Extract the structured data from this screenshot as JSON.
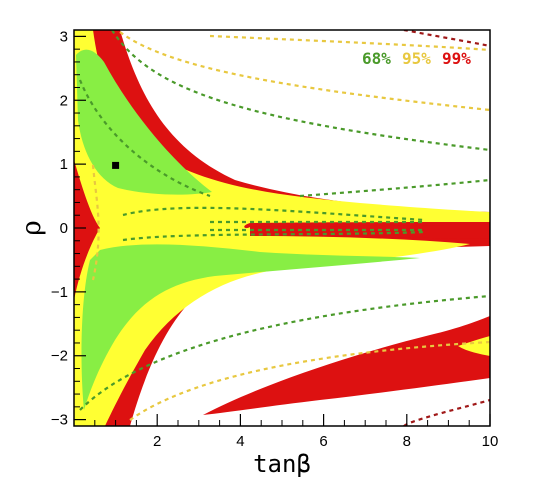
{
  "colors": {
    "c68": "#88ee44",
    "c95": "#ffff33",
    "c99": "#dd1111",
    "dash68": "#4a9a2a",
    "dash95": "#e8c840",
    "dash99": "#a01818",
    "best_fit": "#000000"
  },
  "legend": {
    "l68": "68%",
    "l95": "95%",
    "l99": "99%",
    "placement": "top-right"
  },
  "chart_data": {
    "type": "contour",
    "xlabel": "tanβ",
    "ylabel": "ρ",
    "xlim": [
      0,
      10
    ],
    "ylim": [
      -3.1,
      3.1
    ],
    "x_ticks": [
      2,
      4,
      6,
      8,
      10
    ],
    "x_tick_labels": [
      "2",
      "4",
      "6",
      "8",
      "10"
    ],
    "y_ticks": [
      -3,
      -2,
      -1,
      0,
      1,
      2,
      3
    ],
    "y_tick_labels": [
      "−3",
      "−2",
      "−1",
      "0",
      "1",
      "2",
      "3"
    ],
    "grid": false,
    "best_fit": {
      "x": 1.0,
      "y": 0.98
    },
    "series": [
      {
        "name": "68%",
        "kind": "filled",
        "level": 0.68
      },
      {
        "name": "95%",
        "kind": "filled",
        "level": 0.95
      },
      {
        "name": "99%",
        "kind": "filled",
        "level": 0.99
      }
    ]
  }
}
